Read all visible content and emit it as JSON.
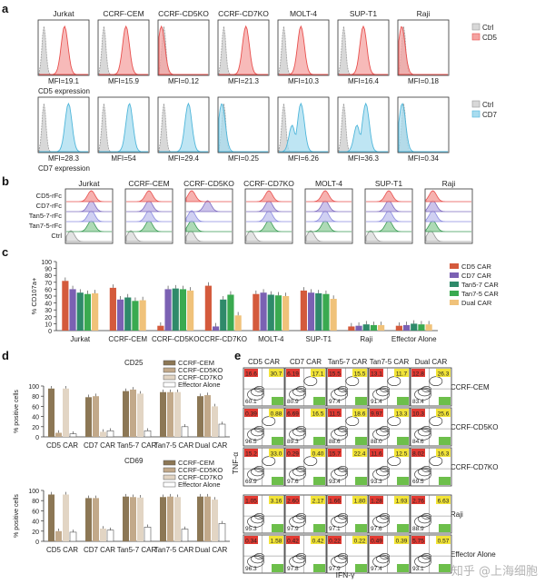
{
  "panel_letters": [
    "a",
    "b",
    "c",
    "d",
    "e"
  ],
  "colors": {
    "cd5": "#e8504e",
    "cd5_fill": "#f4a3a1",
    "cd7": "#4fb6da",
    "cd7_fill": "#a8dcef",
    "ctrl": "#9a9a9a",
    "cd5_car": "#d45a3c",
    "cd7_car": "#7b61b3",
    "tan57_car": "#2f8a6a",
    "tan75_car": "#3aaa50",
    "dual_car": "#f0c27a",
    "ccrf_cem": "#8c7755",
    "ccrf_cd5ko": "#c2a98a",
    "ccrf_cd7ko": "#e2d5c4",
    "effector": "#ffffff",
    "quad_red": "#e23a32",
    "quad_yellow": "#f2e437",
    "quad_green": "#6dbf4b"
  },
  "panel_a": {
    "cell_lines": [
      "Jurkat",
      "CCRF-CEM",
      "CCRF-CD5KO",
      "CCRF-CD7KO",
      "MOLT-4",
      "SUP-T1",
      "Raji"
    ],
    "row1_title": "CD5 expression",
    "row2_title": "CD7 expression",
    "row1_mfi": [
      "MFI=19.1",
      "MFI=15.9",
      "MFI=0.12",
      "MFI=21.3",
      "MFI=10.3",
      "MFI=16.4",
      "MFI=0.18"
    ],
    "row2_mfi": [
      "MFI=28.3",
      "MFI=54",
      "MFI=29.4",
      "MFI=0.25",
      "MFI=6.26",
      "MFI=36.3",
      "MFI=0.34"
    ],
    "legend1": [
      "Ctrl",
      "CD5"
    ],
    "legend2": [
      "Ctrl",
      "CD7"
    ]
  },
  "panel_b": {
    "cell_lines": [
      "Jurkat",
      "CCRF-CEM",
      "CCRF-CD5KO",
      "CCRF-CD7KO",
      "MOLT-4",
      "SUP-T1",
      "Raji"
    ],
    "rows": [
      "CD5-rFc",
      "CD7-rFc",
      "Tan5-7-rFc",
      "Tan7-5-rFc",
      "Ctrl"
    ]
  },
  "chart_data": [
    {
      "type": "bar",
      "panel": "c",
      "ylabel": "% CD107a+",
      "ylim": [
        0,
        100
      ],
      "yticks": [
        0,
        10,
        20,
        30,
        40,
        50,
        60,
        70,
        80,
        90,
        100
      ],
      "categories": [
        "Jurkat",
        "CCRF-CEM",
        "CCRF-CD5KO",
        "CCRF-CD7KO",
        "MOLT-4",
        "SUP-T1",
        "Raji",
        "Effector Alone"
      ],
      "series": [
        {
          "name": "CD5 CAR",
          "values": [
            72,
            62,
            7,
            65,
            53,
            58,
            6,
            7
          ]
        },
        {
          "name": "CD7 CAR",
          "values": [
            60,
            45,
            60,
            6,
            55,
            55,
            7,
            8
          ]
        },
        {
          "name": "Tan5-7 CAR",
          "values": [
            55,
            48,
            61,
            45,
            52,
            54,
            9,
            10
          ]
        },
        {
          "name": "Tan7-5 CAR",
          "values": [
            53,
            43,
            60,
            52,
            51,
            53,
            8,
            9
          ]
        },
        {
          "name": "Dual CAR",
          "values": [
            54,
            44,
            58,
            22,
            50,
            46,
            8,
            9
          ]
        }
      ]
    },
    {
      "type": "bar",
      "panel": "d-top",
      "title": "CD25",
      "ylabel": "% positive cells",
      "ylim": [
        0,
        100
      ],
      "yticks": [
        0,
        20,
        40,
        60,
        80,
        100
      ],
      "categories": [
        "CD5 CAR",
        "CD7 CAR",
        "Tan5-7 CAR",
        "Tan7-5 CAR",
        "Dual CAR"
      ],
      "series": [
        {
          "name": "CCRF-CEM",
          "values": [
            95,
            78,
            90,
            88,
            80
          ]
        },
        {
          "name": "CCRF-CD5KO",
          "values": [
            8,
            80,
            93,
            88,
            82
          ]
        },
        {
          "name": "CCRF-CD7KO",
          "values": [
            95,
            10,
            85,
            88,
            60
          ]
        },
        {
          "name": "Effector Alone",
          "values": [
            6,
            12,
            12,
            20,
            25
          ]
        }
      ]
    },
    {
      "type": "bar",
      "panel": "d-bottom",
      "title": "CD69",
      "ylabel": "% positive cells",
      "ylim": [
        0,
        100
      ],
      "yticks": [
        0,
        20,
        40,
        60,
        80,
        100
      ],
      "categories": [
        "CD5 CAR",
        "CD7 CAR",
        "Tan5-7 CAR",
        "Tan7-5 CAR",
        "Dual CAR"
      ],
      "series": [
        {
          "name": "CCRF-CEM",
          "values": [
            92,
            85,
            88,
            87,
            88
          ]
        },
        {
          "name": "CCRF-CD5KO",
          "values": [
            20,
            85,
            87,
            88,
            88
          ]
        },
        {
          "name": "CCRF-CD7KO",
          "values": [
            92,
            25,
            86,
            87,
            82
          ]
        },
        {
          "name": "Effector Alone",
          "values": [
            18,
            22,
            28,
            24,
            35
          ]
        }
      ]
    }
  ],
  "panel_e": {
    "columns": [
      "CD5 CAR",
      "CD7 CAR",
      "Tan5-7 CAR",
      "Tan7-5 CAR",
      "Dual CAR"
    ],
    "rows": [
      "CCRF-CEM",
      "CCRF-CD5KO",
      "CCRF-CD7KO",
      "Raji",
      "Effector Alone"
    ],
    "y_axis": "TNF-α",
    "x_axis": "IFN-γ",
    "quadrants": [
      [
        [
          "16.6",
          "30.7",
          "60.1"
        ],
        [
          "6.19",
          "17.1",
          "80.9"
        ],
        [
          "15.5",
          "15.5",
          "97.4"
        ],
        [
          "13.1",
          "11.7",
          "91.4"
        ],
        [
          "12.8",
          "26.3",
          "83.4"
        ]
      ],
      [
        [
          "0.39",
          "0.88",
          "96.5"
        ],
        [
          "6.69",
          "16.5",
          "89.3"
        ],
        [
          "11.5",
          "18.6",
          "88.6"
        ],
        [
          "9.97",
          "13.3",
          "88.0"
        ],
        [
          "10.3",
          "25.6",
          "84.6"
        ]
      ],
      [
        [
          "15.2",
          "33.0",
          "69.9"
        ],
        [
          "0.29",
          "0.40",
          "97.6"
        ],
        [
          "15.7",
          "22.4",
          "93.4"
        ],
        [
          "11.6",
          "12.5",
          "93.3"
        ],
        [
          "8.02",
          "16.3",
          "69.5"
        ]
      ],
      [
        [
          "1.05",
          "3.16",
          "95.3"
        ],
        [
          "2.60",
          "2.17",
          "97.9"
        ],
        [
          "1.66",
          "1.80",
          "97.1"
        ],
        [
          "1.28",
          "1.93",
          "97.6"
        ],
        [
          "2.76",
          "6.63",
          "88.9"
        ]
      ],
      [
        [
          "0.34",
          "1.58",
          "96.3"
        ],
        [
          "0.42",
          "0.42",
          "97.8"
        ],
        [
          "0.22",
          "0.22",
          "97.9"
        ],
        [
          "0.49",
          "0.39",
          "97.4"
        ],
        [
          "5.75",
          "0.57",
          "93.1"
        ]
      ]
    ]
  },
  "watermark": "知乎 @上海细胞"
}
